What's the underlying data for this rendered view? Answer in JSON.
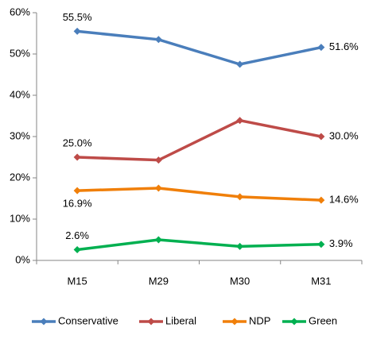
{
  "chart_data": {
    "type": "line",
    "categories": [
      "M15",
      "M29",
      "M30",
      "M31"
    ],
    "series": [
      {
        "name": "Conservative",
        "color": "#4a7ebb",
        "values": [
          55.5,
          53.5,
          47.5,
          51.6
        ],
        "value_labels": [
          "55.5%",
          null,
          null,
          "51.6%"
        ]
      },
      {
        "name": "Liberal",
        "color": "#be4b48",
        "values": [
          25.0,
          24.3,
          33.9,
          30.0
        ],
        "value_labels": [
          "25.0%",
          null,
          null,
          "30.0%"
        ]
      },
      {
        "name": "NDP",
        "color": "#f07f09",
        "values": [
          16.9,
          17.5,
          15.4,
          14.6
        ],
        "value_labels": [
          "16.9%",
          null,
          null,
          "14.6%"
        ]
      },
      {
        "name": "Green",
        "color": "#00b050",
        "values": [
          2.6,
          5.0,
          3.4,
          3.9
        ],
        "value_labels": [
          "2.6%",
          null,
          null,
          "3.9%"
        ]
      }
    ],
    "ylim": [
      0,
      60
    ],
    "yticks": [
      {
        "value": 0,
        "label": "0%"
      },
      {
        "value": 10,
        "label": "10%"
      },
      {
        "value": 20,
        "label": "20%"
      },
      {
        "value": 30,
        "label": "30%"
      },
      {
        "value": 40,
        "label": "40%"
      },
      {
        "value": 50,
        "label": "50%"
      },
      {
        "value": 60,
        "label": "60%"
      }
    ],
    "legend": "bottom"
  }
}
